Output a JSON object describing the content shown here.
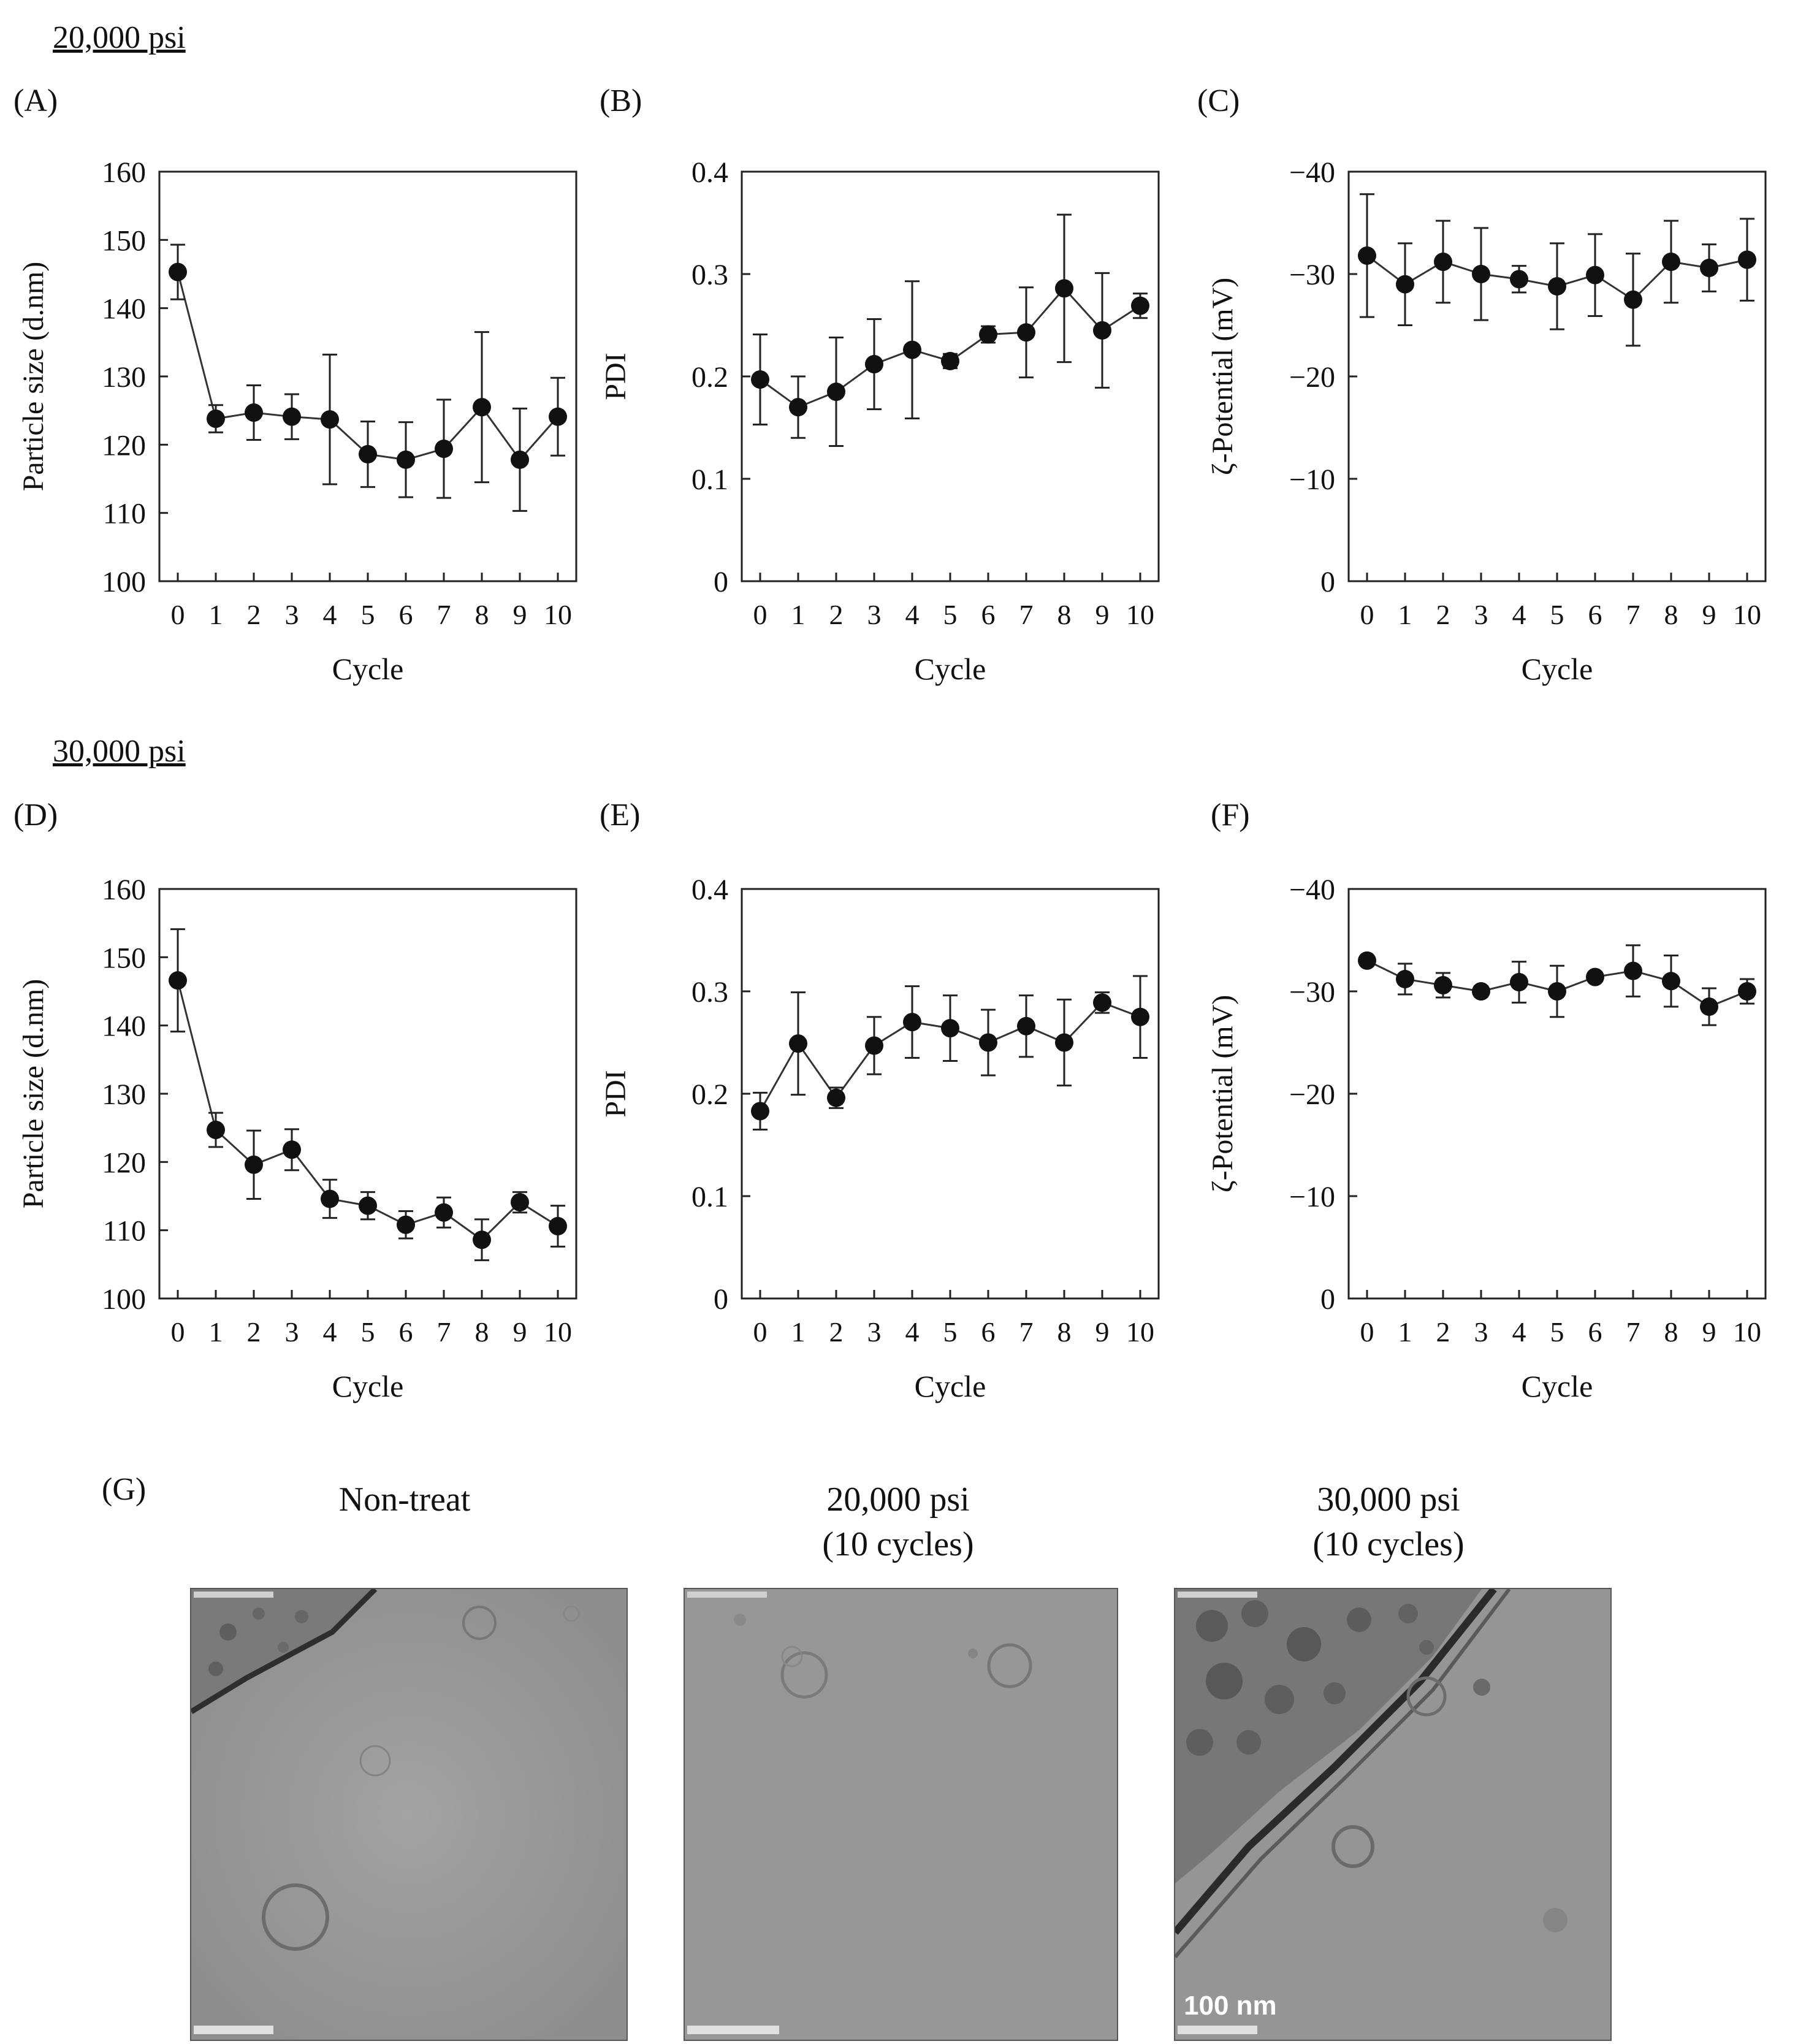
{
  "headings": {
    "top": "20,000 psi",
    "middle": "30,000 psi"
  },
  "colors": {
    "marker": "#111111",
    "line": "#333333",
    "axis": "#222222",
    "tem_bg": "#9a9a9a"
  },
  "chart_data": [
    {
      "id": "A",
      "label": "(A)",
      "type": "line",
      "title": "",
      "xlabel": "Cycle",
      "ylabel": "Particle size (d.nm)",
      "x": [
        0,
        1,
        2,
        3,
        4,
        5,
        6,
        7,
        8,
        9,
        10
      ],
      "yticks": [
        "100",
        "110",
        "120",
        "130",
        "140",
        "150",
        "160"
      ],
      "ylim": [
        100,
        160
      ],
      "values": [
        145.3,
        123.8,
        124.7,
        124.1,
        123.7,
        118.6,
        117.8,
        119.4,
        125.5,
        117.8,
        124.1
      ],
      "errors": [
        4.0,
        2.0,
        4.0,
        3.3,
        9.5,
        4.8,
        5.5,
        7.2,
        11.0,
        7.5,
        5.7
      ]
    },
    {
      "id": "B",
      "label": "(B)",
      "type": "line",
      "title": "",
      "xlabel": "Cycle",
      "ylabel": "PDI",
      "x": [
        0,
        1,
        2,
        3,
        4,
        5,
        6,
        7,
        8,
        9,
        10
      ],
      "yticks": [
        "0",
        "0.1",
        "0.2",
        "0.3",
        "0.4"
      ],
      "ylim": [
        0,
        0.4
      ],
      "values": [
        0.197,
        0.17,
        0.185,
        0.212,
        0.226,
        0.215,
        0.241,
        0.243,
        0.286,
        0.245,
        0.269
      ],
      "errors": [
        0.044,
        0.03,
        0.053,
        0.044,
        0.067,
        0.007,
        0.008,
        0.044,
        0.072,
        0.056,
        0.012
      ]
    },
    {
      "id": "C",
      "label": "(C)",
      "type": "line",
      "title": "",
      "xlabel": "Cycle",
      "ylabel": "ζ-Potential (mV)",
      "x": [
        0,
        1,
        2,
        3,
        4,
        5,
        6,
        7,
        8,
        9,
        10
      ],
      "yticks": [
        "0",
        "−10",
        "−20",
        "−30",
        "−40"
      ],
      "ylim": [
        0,
        -40
      ],
      "values": [
        -31.8,
        -29.0,
        -31.2,
        -30.0,
        -29.5,
        -28.8,
        -29.9,
        -27.5,
        -31.2,
        -30.6,
        -31.4
      ],
      "errors": [
        6.0,
        4.0,
        4.0,
        4.5,
        1.3,
        4.2,
        4.0,
        4.5,
        4.0,
        2.3,
        4.0
      ]
    },
    {
      "id": "D",
      "label": "(D)",
      "type": "line",
      "title": "",
      "xlabel": "Cycle",
      "ylabel": "Particle size (d.nm)",
      "x": [
        0,
        1,
        2,
        3,
        4,
        5,
        6,
        7,
        8,
        9,
        10
      ],
      "yticks": [
        "100",
        "110",
        "120",
        "130",
        "140",
        "150",
        "160"
      ],
      "ylim": [
        100,
        160
      ],
      "values": [
        146.6,
        124.7,
        119.6,
        121.8,
        114.6,
        113.6,
        110.8,
        112.6,
        108.6,
        114.1,
        110.6
      ],
      "errors": [
        7.5,
        2.5,
        5.0,
        3.0,
        2.8,
        2.0,
        2.0,
        2.2,
        3.0,
        1.5,
        3.0
      ]
    },
    {
      "id": "E",
      "label": "(E)",
      "type": "line",
      "title": "",
      "xlabel": "Cycle",
      "ylabel": "PDI",
      "x": [
        0,
        1,
        2,
        3,
        4,
        5,
        6,
        7,
        8,
        9,
        10
      ],
      "yticks": [
        "0",
        "0.1",
        "0.2",
        "0.3",
        "0.4"
      ],
      "ylim": [
        0,
        0.4
      ],
      "values": [
        0.183,
        0.249,
        0.196,
        0.247,
        0.27,
        0.264,
        0.25,
        0.266,
        0.25,
        0.289,
        0.275
      ],
      "errors": [
        0.018,
        0.05,
        0.01,
        0.028,
        0.035,
        0.032,
        0.032,
        0.03,
        0.042,
        0.01,
        0.04
      ]
    },
    {
      "id": "F",
      "label": "(F)",
      "type": "line",
      "title": "",
      "xlabel": "Cycle",
      "ylabel": "ζ-Potential (mV)",
      "x": [
        0,
        1,
        2,
        3,
        4,
        5,
        6,
        7,
        8,
        9,
        10
      ],
      "yticks": [
        "0",
        "−10",
        "−20",
        "−30",
        "−40"
      ],
      "ylim": [
        0,
        -40
      ],
      "values": [
        -33.0,
        -31.2,
        -30.6,
        -30.0,
        -30.9,
        -30.0,
        -31.4,
        -32.0,
        -31.0,
        -28.5,
        -30.0
      ],
      "errors": [
        0.3,
        1.5,
        1.2,
        0.5,
        2.0,
        2.5,
        0.4,
        2.5,
        2.5,
        1.8,
        1.2
      ]
    }
  ],
  "tem": {
    "label": "(G)",
    "panels": [
      {
        "title_line1": "",
        "title_line2": "Non-treat",
        "scale_text": ""
      },
      {
        "title_line1": "20,000 psi",
        "title_line2": "(10 cycles)",
        "scale_text": ""
      },
      {
        "title_line1": "30,000 psi",
        "title_line2": "(10 cycles)",
        "scale_text": "100 nm"
      }
    ]
  }
}
